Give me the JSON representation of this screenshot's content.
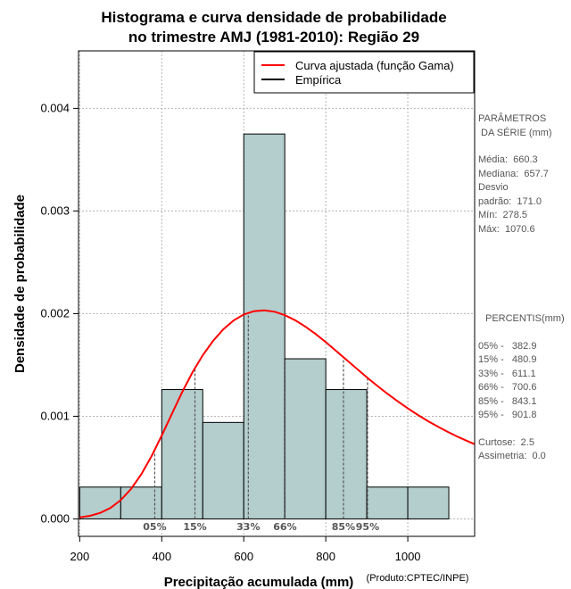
{
  "chart_data": {
    "type": "bar",
    "title_line1": "Histograma e curva densidade de probabilidade",
    "title_line2": "no trimestre AMJ (1981-2010): Região 29",
    "xlabel": "Precipitação acumulada (mm)",
    "ylabel": "Densidade de probabilidade",
    "credit": "(Produto:CPTEC/INPE)",
    "xlim": [
      197,
      1163
    ],
    "ylim": [
      -0.00017,
      0.00456
    ],
    "x_ticks": [
      200,
      400,
      600,
      800,
      1000
    ],
    "x_tick_labels": [
      "200",
      "400",
      "600",
      "800",
      "1000"
    ],
    "y_ticks": [
      0.0,
      0.001,
      0.002,
      0.003,
      0.004
    ],
    "y_tick_labels": [
      "0.000",
      "0.001",
      "0.002",
      "0.003",
      "0.004"
    ],
    "bins": [
      {
        "start": 200,
        "end": 300,
        "density": 0.00031
      },
      {
        "start": 300,
        "end": 400,
        "density": 0.00031
      },
      {
        "start": 400,
        "end": 500,
        "density": 0.00126
      },
      {
        "start": 500,
        "end": 600,
        "density": 0.00094
      },
      {
        "start": 600,
        "end": 700,
        "density": 0.00375
      },
      {
        "start": 700,
        "end": 800,
        "density": 0.00156
      },
      {
        "start": 800,
        "end": 900,
        "density": 0.00126
      },
      {
        "start": 900,
        "end": 1000,
        "density": 0.00031
      },
      {
        "start": 1000,
        "end": 1100,
        "density": 0.00031
      }
    ],
    "bar_color": "#b4cdcd",
    "curve_color": "#ff0000",
    "legend": [
      {
        "label": "Curva ajustada (função Gama)",
        "color": "#ff0000"
      },
      {
        "label": "Empírica",
        "color": "#000000"
      }
    ],
    "gamma_curve": {
      "x": [
        200,
        225,
        250,
        275,
        300,
        325,
        350,
        375,
        400,
        425,
        450,
        475,
        500,
        525,
        550,
        575,
        600,
        625,
        650,
        675,
        700,
        725,
        750,
        775,
        800,
        825,
        850,
        875,
        900,
        925,
        950,
        975,
        1000,
        1025,
        1050,
        1075,
        1100,
        1125,
        1150,
        1163
      ],
      "y": [
        1.39e-05,
        2.99e-05,
        5.89e-05,
        0.0001075,
        0.0001826,
        0.0002904,
        0.0004337,
        0.0006102,
        0.0008122,
        0.0010265,
        0.0012378,
        0.001429,
        0.0015954,
        0.0017338,
        0.0018465,
        0.0019325,
        0.0019913,
        0.0020238,
        0.0020319,
        0.0020181,
        0.0019852,
        0.0019362,
        0.001874,
        0.0018017,
        0.0017221,
        0.001638,
        0.0015517,
        0.0014654,
        0.0013806,
        0.0012986,
        0.0012203,
        0.0011462,
        0.0010766,
        0.0010115,
        0.0009509,
        0.0008947,
        0.0008426,
        0.0007944,
        0.0007499,
        0.000728
      ]
    },
    "percentiles": [
      {
        "label": "05%",
        "value": 382.9
      },
      {
        "label": "15%",
        "value": 480.9
      },
      {
        "label": "33%",
        "value": 611.1
      },
      {
        "label": "66%",
        "value": 700.6
      },
      {
        "label": "85%",
        "value": 843.1
      },
      {
        "label": "95%",
        "value": 901.8
      }
    ]
  },
  "side_panel": {
    "params_title_1": "PARÂMETROS",
    "params_title_2": " DA SÉRIE (mm)",
    "media": "Média:  660.3",
    "mediana": "Mediana:  657.7",
    "desvio_1": "Desvio",
    "desvio_2": "padrão:  171.0",
    "min": "Mín:  278.5",
    "max": "Máx:  1070.6",
    "percentis_title": "PERCENTIS(mm)",
    "p05": "05% -   382.9",
    "p15": "15% -   480.9",
    "p33": "33% -   611.1",
    "p66": "66% -   700.6",
    "p85": "85% -   843.1",
    "p95": "95% -   901.8",
    "curtose": "Curtose:  2.5",
    "assimetria": "Assimetria:  0.0"
  }
}
